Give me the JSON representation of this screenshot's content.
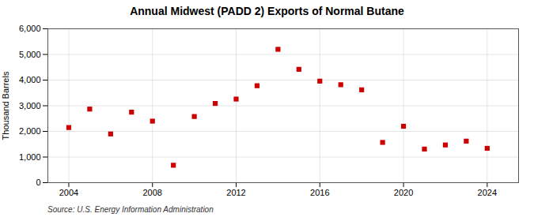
{
  "chart_data": {
    "type": "scatter",
    "title": "Annual Midwest (PADD 2) Exports of Normal Butane",
    "ylabel": "Thousand Barrels",
    "annotation": "Source: U.S. Energy Information Administration",
    "x": [
      2004,
      2005,
      2006,
      2007,
      2008,
      2009,
      2010,
      2011,
      2012,
      2013,
      2014,
      2015,
      2016,
      2017,
      2018,
      2019,
      2020,
      2021,
      2022,
      2023,
      2024
    ],
    "values": [
      2150,
      2870,
      1900,
      2750,
      2400,
      680,
      2580,
      3090,
      3260,
      3780,
      5200,
      4420,
      3960,
      3820,
      3620,
      1570,
      2200,
      1310,
      1470,
      1620,
      1340
    ],
    "color": "#cc0000",
    "marker": "square",
    "xlim": [
      2003.0,
      2025.5
    ],
    "ylim": [
      0,
      6000
    ],
    "xticks": [
      2004,
      2008,
      2012,
      2016,
      2020,
      2024
    ],
    "yticks": [
      0,
      {
        "value": 1000,
        "label": "1,000"
      },
      {
        "value": 2000,
        "label": "2,000"
      },
      {
        "value": 3000,
        "label": "3,000"
      },
      {
        "value": 4000,
        "label": "4,000"
      },
      {
        "value": 5000,
        "label": "5,000"
      },
      {
        "value": 6000,
        "label": "6,000"
      }
    ],
    "grid": true
  }
}
